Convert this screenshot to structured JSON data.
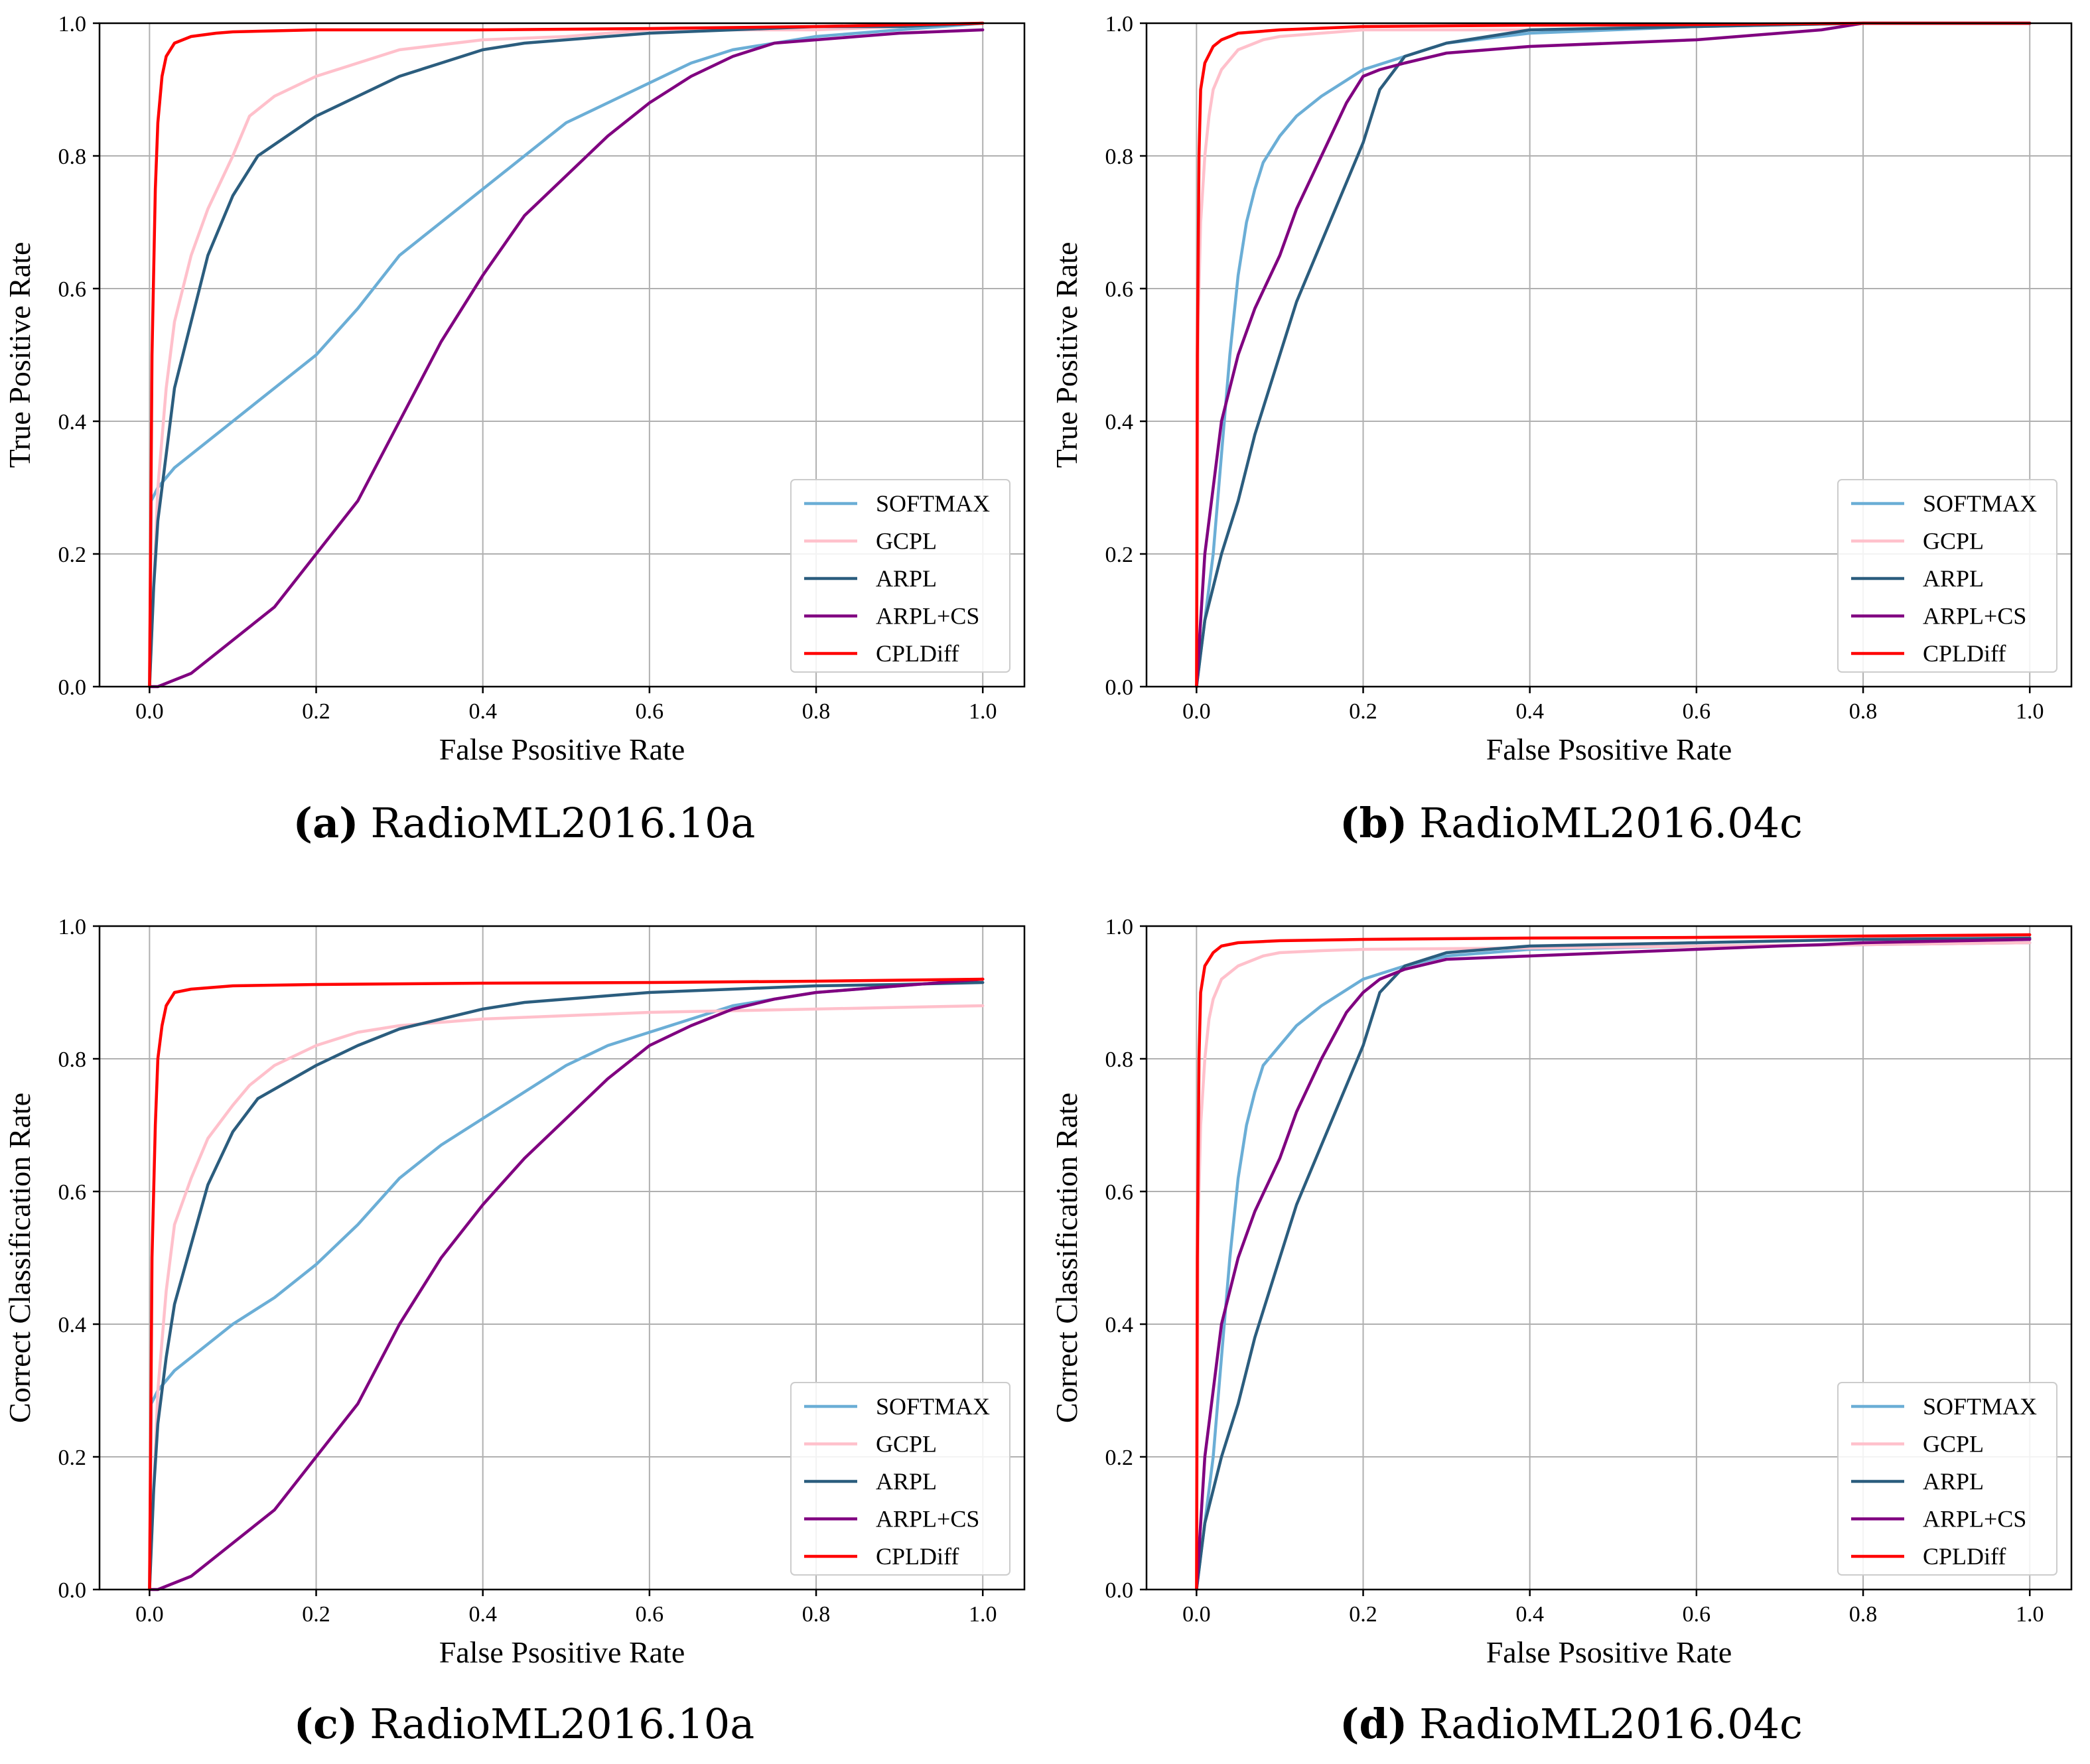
{
  "figure": {
    "colors": {
      "SOFTMAX": "#6baed6",
      "GCPL": "#ffc0cb",
      "ARPL": "#2b5d7e",
      "ARPL+CS": "#800080",
      "CPLDiff": "#ff0000",
      "grid": "#b0b0b0",
      "axes": "#000000"
    }
  },
  "chart_data": [
    {
      "type": "line",
      "caption_letter": "(a)",
      "caption_text": "RadioML2016.10a",
      "xlabel": "False Psositive Rate",
      "ylabel": "True Positive Rate",
      "xlim": [
        -0.06,
        1.05
      ],
      "ylim": [
        0.0,
        1.0
      ],
      "xticks": [
        "0.0",
        "0.2",
        "0.4",
        "0.6",
        "0.8",
        "1.0"
      ],
      "yticks": [
        "0.0",
        "0.2",
        "0.4",
        "0.6",
        "0.8",
        "1.0"
      ],
      "grid": true,
      "legend_position": "lower-right",
      "series": [
        {
          "name": "SOFTMAX",
          "x": [
            0,
            0.002,
            0.01,
            0.03,
            0.05,
            0.08,
            0.1,
            0.15,
            0.2,
            0.25,
            0.3,
            0.35,
            0.4,
            0.45,
            0.5,
            0.55,
            0.6,
            0.65,
            0.7,
            0.8,
            0.9,
            1.0
          ],
          "y": [
            0,
            0.28,
            0.3,
            0.33,
            0.35,
            0.38,
            0.4,
            0.45,
            0.5,
            0.57,
            0.65,
            0.7,
            0.75,
            0.8,
            0.85,
            0.88,
            0.91,
            0.94,
            0.96,
            0.98,
            0.99,
            1.0
          ]
        },
        {
          "name": "GCPL",
          "x": [
            0,
            0.005,
            0.01,
            0.02,
            0.03,
            0.05,
            0.07,
            0.1,
            0.12,
            0.15,
            0.2,
            0.25,
            0.3,
            0.4,
            0.5,
            0.6,
            0.8,
            1.0
          ],
          "y": [
            0,
            0.15,
            0.3,
            0.45,
            0.55,
            0.65,
            0.72,
            0.8,
            0.86,
            0.89,
            0.92,
            0.94,
            0.96,
            0.975,
            0.98,
            0.99,
            0.99,
            1.0
          ]
        },
        {
          "name": "ARPL",
          "x": [
            0,
            0.005,
            0.01,
            0.02,
            0.03,
            0.05,
            0.07,
            0.1,
            0.13,
            0.2,
            0.25,
            0.3,
            0.35,
            0.4,
            0.45,
            0.5,
            0.6,
            0.7,
            0.8,
            0.9,
            1.0
          ],
          "y": [
            0,
            0.15,
            0.25,
            0.35,
            0.45,
            0.55,
            0.65,
            0.74,
            0.8,
            0.86,
            0.89,
            0.92,
            0.94,
            0.96,
            0.97,
            0.975,
            0.985,
            0.99,
            0.995,
            0.995,
            1.0
          ]
        },
        {
          "name": "ARPL+CS",
          "x": [
            0,
            0.01,
            0.03,
            0.05,
            0.08,
            0.1,
            0.15,
            0.2,
            0.25,
            0.3,
            0.35,
            0.4,
            0.45,
            0.5,
            0.55,
            0.6,
            0.65,
            0.7,
            0.75,
            0.8,
            0.85,
            0.9,
            1.0
          ],
          "y": [
            0,
            0.0,
            0.01,
            0.02,
            0.05,
            0.07,
            0.12,
            0.2,
            0.28,
            0.4,
            0.52,
            0.62,
            0.71,
            0.77,
            0.83,
            0.88,
            0.92,
            0.95,
            0.97,
            0.975,
            0.98,
            0.985,
            0.99
          ]
        },
        {
          "name": "CPLDiff",
          "x": [
            0,
            0.003,
            0.007,
            0.01,
            0.015,
            0.02,
            0.03,
            0.05,
            0.08,
            0.1,
            0.2,
            0.4,
            0.6,
            0.8,
            1.0
          ],
          "y": [
            0,
            0.5,
            0.75,
            0.85,
            0.92,
            0.95,
            0.97,
            0.98,
            0.985,
            0.987,
            0.99,
            0.99,
            0.992,
            0.995,
            1.0
          ]
        }
      ]
    },
    {
      "type": "line",
      "caption_letter": "(b)",
      "caption_text": "RadioML2016.04c",
      "xlabel": "False Psositive Rate",
      "ylabel": "True Positive Rate",
      "xlim": [
        -0.06,
        1.05
      ],
      "ylim": [
        0.0,
        1.0
      ],
      "xticks": [
        "0.0",
        "0.2",
        "0.4",
        "0.6",
        "0.8",
        "1.0"
      ],
      "yticks": [
        "0.0",
        "0.2",
        "0.4",
        "0.6",
        "0.8",
        "1.0"
      ],
      "grid": true,
      "legend_position": "lower-right",
      "series": [
        {
          "name": "SOFTMAX",
          "x": [
            0,
            0.005,
            0.01,
            0.02,
            0.03,
            0.04,
            0.05,
            0.06,
            0.07,
            0.08,
            0.1,
            0.12,
            0.15,
            0.2,
            0.25,
            0.3,
            0.4,
            0.6,
            0.8,
            1.0
          ],
          "y": [
            0,
            0.05,
            0.1,
            0.2,
            0.35,
            0.5,
            0.62,
            0.7,
            0.75,
            0.79,
            0.83,
            0.86,
            0.89,
            0.93,
            0.95,
            0.97,
            0.985,
            0.995,
            1.0,
            1.0
          ]
        },
        {
          "name": "GCPL",
          "x": [
            0,
            0.002,
            0.005,
            0.01,
            0.015,
            0.02,
            0.03,
            0.05,
            0.08,
            0.1,
            0.15,
            0.2,
            0.4,
            0.6,
            0.8,
            1.0
          ],
          "y": [
            0,
            0.55,
            0.7,
            0.8,
            0.86,
            0.9,
            0.93,
            0.96,
            0.975,
            0.98,
            0.985,
            0.99,
            0.99,
            0.995,
            1.0,
            1.0
          ]
        },
        {
          "name": "ARPL",
          "x": [
            0,
            0.005,
            0.01,
            0.02,
            0.03,
            0.05,
            0.07,
            0.1,
            0.12,
            0.15,
            0.18,
            0.2,
            0.22,
            0.25,
            0.3,
            0.35,
            0.4,
            0.6,
            0.8,
            1.0
          ],
          "y": [
            0,
            0.05,
            0.1,
            0.15,
            0.2,
            0.28,
            0.38,
            0.5,
            0.58,
            0.67,
            0.76,
            0.82,
            0.9,
            0.95,
            0.97,
            0.98,
            0.99,
            0.995,
            1.0,
            1.0
          ]
        },
        {
          "name": "ARPL+CS",
          "x": [
            0,
            0.005,
            0.01,
            0.02,
            0.03,
            0.05,
            0.07,
            0.1,
            0.12,
            0.15,
            0.18,
            0.2,
            0.22,
            0.25,
            0.3,
            0.4,
            0.5,
            0.6,
            0.7,
            0.75,
            0.8,
            1.0
          ],
          "y": [
            0,
            0.1,
            0.2,
            0.3,
            0.4,
            0.5,
            0.57,
            0.65,
            0.72,
            0.8,
            0.88,
            0.92,
            0.93,
            0.94,
            0.955,
            0.965,
            0.97,
            0.975,
            0.985,
            0.99,
            1.0,
            1.0
          ]
        },
        {
          "name": "CPLDiff",
          "x": [
            0,
            0.001,
            0.003,
            0.005,
            0.01,
            0.02,
            0.03,
            0.05,
            0.1,
            0.2,
            0.4,
            0.6,
            0.8,
            1.0
          ],
          "y": [
            0,
            0.5,
            0.8,
            0.9,
            0.94,
            0.965,
            0.975,
            0.985,
            0.99,
            0.995,
            0.997,
            0.998,
            1.0,
            1.0
          ]
        }
      ]
    },
    {
      "type": "line",
      "caption_letter": "(c)",
      "caption_text": "RadioML2016.10a",
      "xlabel": "False Psositive Rate",
      "ylabel": "Correct Classification Rate",
      "xlim": [
        -0.06,
        1.05
      ],
      "ylim": [
        0.0,
        1.0
      ],
      "xticks": [
        "0.0",
        "0.2",
        "0.4",
        "0.6",
        "0.8",
        "1.0"
      ],
      "yticks": [
        "0.0",
        "0.2",
        "0.4",
        "0.6",
        "0.8",
        "1.0"
      ],
      "grid": true,
      "legend_position": "lower-right",
      "series": [
        {
          "name": "SOFTMAX",
          "x": [
            0,
            0.002,
            0.01,
            0.03,
            0.05,
            0.08,
            0.1,
            0.15,
            0.2,
            0.25,
            0.3,
            0.35,
            0.4,
            0.45,
            0.5,
            0.55,
            0.6,
            0.65,
            0.7,
            0.8,
            0.9,
            1.0
          ],
          "y": [
            0,
            0.28,
            0.3,
            0.33,
            0.35,
            0.38,
            0.4,
            0.44,
            0.49,
            0.55,
            0.62,
            0.67,
            0.71,
            0.75,
            0.79,
            0.82,
            0.84,
            0.86,
            0.88,
            0.9,
            0.91,
            0.92
          ]
        },
        {
          "name": "GCPL",
          "x": [
            0,
            0.005,
            0.01,
            0.02,
            0.03,
            0.05,
            0.07,
            0.1,
            0.12,
            0.15,
            0.2,
            0.25,
            0.3,
            0.4,
            0.5,
            0.6,
            0.8,
            1.0
          ],
          "y": [
            0,
            0.15,
            0.3,
            0.45,
            0.55,
            0.62,
            0.68,
            0.73,
            0.76,
            0.79,
            0.82,
            0.84,
            0.85,
            0.86,
            0.865,
            0.87,
            0.875,
            0.88
          ]
        },
        {
          "name": "ARPL",
          "x": [
            0,
            0.005,
            0.01,
            0.02,
            0.03,
            0.05,
            0.07,
            0.1,
            0.13,
            0.2,
            0.25,
            0.3,
            0.35,
            0.4,
            0.45,
            0.5,
            0.6,
            0.7,
            0.8,
            0.9,
            1.0
          ],
          "y": [
            0,
            0.15,
            0.25,
            0.35,
            0.43,
            0.52,
            0.61,
            0.69,
            0.74,
            0.79,
            0.82,
            0.845,
            0.86,
            0.875,
            0.885,
            0.89,
            0.9,
            0.905,
            0.91,
            0.912,
            0.915
          ]
        },
        {
          "name": "ARPL+CS",
          "x": [
            0,
            0.01,
            0.03,
            0.05,
            0.08,
            0.1,
            0.15,
            0.2,
            0.25,
            0.3,
            0.35,
            0.4,
            0.45,
            0.5,
            0.55,
            0.6,
            0.65,
            0.7,
            0.75,
            0.8,
            0.85,
            0.9,
            1.0
          ],
          "y": [
            0,
            0.0,
            0.01,
            0.02,
            0.05,
            0.07,
            0.12,
            0.2,
            0.28,
            0.4,
            0.5,
            0.58,
            0.65,
            0.71,
            0.77,
            0.82,
            0.85,
            0.875,
            0.89,
            0.9,
            0.905,
            0.91,
            0.92
          ]
        },
        {
          "name": "CPLDiff",
          "x": [
            0,
            0.003,
            0.007,
            0.01,
            0.015,
            0.02,
            0.03,
            0.05,
            0.08,
            0.1,
            0.2,
            0.4,
            0.6,
            0.8,
            1.0
          ],
          "y": [
            0,
            0.5,
            0.7,
            0.8,
            0.85,
            0.88,
            0.9,
            0.905,
            0.908,
            0.91,
            0.912,
            0.914,
            0.915,
            0.917,
            0.92
          ]
        }
      ]
    },
    {
      "type": "line",
      "caption_letter": "(d)",
      "caption_text": "RadioML2016.04c",
      "xlabel": "False Psositive Rate",
      "ylabel": "Correct Classification Rate",
      "xlim": [
        -0.06,
        1.05
      ],
      "ylim": [
        0.0,
        1.0
      ],
      "xticks": [
        "0.0",
        "0.2",
        "0.4",
        "0.6",
        "0.8",
        "1.0"
      ],
      "yticks": [
        "0.0",
        "0.2",
        "0.4",
        "0.6",
        "0.8",
        "1.0"
      ],
      "grid": true,
      "legend_position": "lower-right",
      "series": [
        {
          "name": "SOFTMAX",
          "x": [
            0,
            0.005,
            0.01,
            0.02,
            0.03,
            0.04,
            0.05,
            0.06,
            0.07,
            0.08,
            0.1,
            0.12,
            0.15,
            0.2,
            0.25,
            0.3,
            0.4,
            0.6,
            0.8,
            1.0
          ],
          "y": [
            0,
            0.05,
            0.1,
            0.2,
            0.35,
            0.5,
            0.62,
            0.7,
            0.75,
            0.79,
            0.82,
            0.85,
            0.88,
            0.92,
            0.94,
            0.955,
            0.965,
            0.97,
            0.972,
            0.975
          ]
        },
        {
          "name": "GCPL",
          "x": [
            0,
            0.002,
            0.005,
            0.01,
            0.015,
            0.02,
            0.03,
            0.05,
            0.08,
            0.1,
            0.15,
            0.2,
            0.4,
            0.6,
            0.8,
            1.0
          ],
          "y": [
            0,
            0.55,
            0.7,
            0.8,
            0.86,
            0.89,
            0.92,
            0.94,
            0.955,
            0.96,
            0.963,
            0.965,
            0.967,
            0.97,
            0.972,
            0.975
          ]
        },
        {
          "name": "ARPL",
          "x": [
            0,
            0.005,
            0.01,
            0.02,
            0.03,
            0.05,
            0.07,
            0.1,
            0.12,
            0.15,
            0.18,
            0.2,
            0.22,
            0.25,
            0.3,
            0.35,
            0.4,
            0.6,
            0.8,
            1.0
          ],
          "y": [
            0,
            0.05,
            0.1,
            0.15,
            0.2,
            0.28,
            0.38,
            0.5,
            0.58,
            0.67,
            0.76,
            0.82,
            0.9,
            0.94,
            0.96,
            0.965,
            0.97,
            0.975,
            0.98,
            0.982
          ]
        },
        {
          "name": "ARPL+CS",
          "x": [
            0,
            0.005,
            0.01,
            0.02,
            0.03,
            0.05,
            0.07,
            0.1,
            0.12,
            0.15,
            0.18,
            0.2,
            0.22,
            0.25,
            0.3,
            0.4,
            0.5,
            0.6,
            0.7,
            0.75,
            0.8,
            1.0
          ],
          "y": [
            0,
            0.1,
            0.2,
            0.3,
            0.4,
            0.5,
            0.57,
            0.65,
            0.72,
            0.8,
            0.87,
            0.9,
            0.92,
            0.935,
            0.95,
            0.955,
            0.96,
            0.965,
            0.97,
            0.972,
            0.975,
            0.98
          ]
        },
        {
          "name": "CPLDiff",
          "x": [
            0,
            0.001,
            0.003,
            0.005,
            0.01,
            0.02,
            0.03,
            0.05,
            0.1,
            0.2,
            0.4,
            0.6,
            0.8,
            1.0
          ],
          "y": [
            0,
            0.5,
            0.8,
            0.9,
            0.94,
            0.96,
            0.97,
            0.975,
            0.978,
            0.98,
            0.982,
            0.983,
            0.985,
            0.987
          ]
        }
      ]
    }
  ]
}
